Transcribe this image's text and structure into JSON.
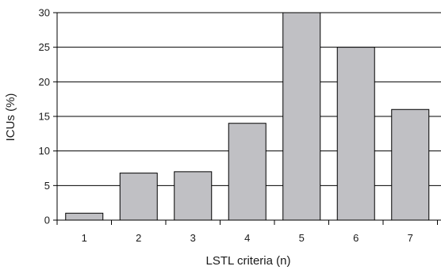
{
  "chart_data": {
    "type": "bar",
    "categories": [
      "1",
      "2",
      "3",
      "4",
      "5",
      "6",
      "7"
    ],
    "values": [
      1,
      6.8,
      7,
      14,
      30,
      25,
      16
    ],
    "xlabel": "LSTL criteria (n)",
    "ylabel": "ICUs (%)",
    "ylim": [
      0,
      30
    ],
    "yticks": [
      "0",
      "5",
      "10",
      "15",
      "20",
      "25",
      "30"
    ],
    "grid": "horizontal",
    "bar_color": "#c0c0c4",
    "bar_edge_color": "#000000"
  }
}
